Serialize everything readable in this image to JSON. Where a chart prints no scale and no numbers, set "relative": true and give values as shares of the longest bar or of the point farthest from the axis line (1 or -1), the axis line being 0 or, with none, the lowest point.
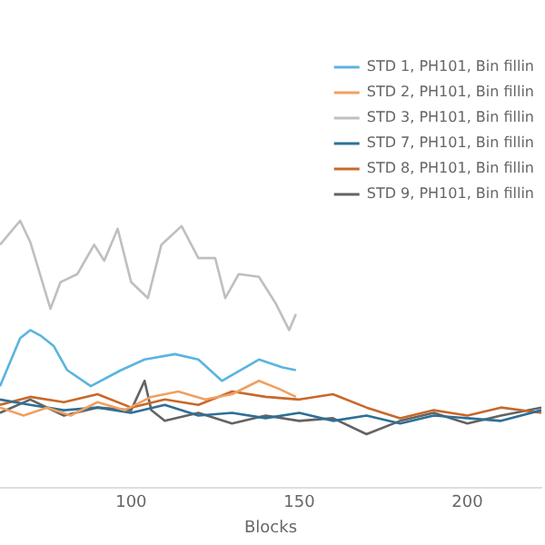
{
  "chart_data": {
    "type": "line",
    "xlabel": "Blocks",
    "relative": true,
    "xlim": [
      61,
      222
    ],
    "xticks": [
      100,
      150,
      200
    ],
    "legend": "top right",
    "grid": false,
    "marker": "none",
    "line_style": "solid",
    "series": [
      {
        "name": "STD 1, PH101, Bin fillin",
        "color": "#5ab4e0",
        "x": [
          61,
          67,
          70,
          73,
          77,
          81,
          88,
          97,
          104,
          113,
          120,
          127,
          138,
          145,
          149
        ],
        "values": [
          0.38,
          0.56,
          0.59,
          0.57,
          0.53,
          0.44,
          0.38,
          0.44,
          0.48,
          0.5,
          0.48,
          0.4,
          0.48,
          0.45,
          0.44
        ]
      },
      {
        "name": "STD 2, PH101, Bin fillin",
        "color": "#f0a060",
        "x": [
          61,
          68,
          75,
          82,
          90,
          98,
          106,
          114,
          122,
          130,
          138,
          144,
          149
        ],
        "values": [
          0.3,
          0.27,
          0.3,
          0.27,
          0.32,
          0.29,
          0.34,
          0.36,
          0.33,
          0.35,
          0.4,
          0.37,
          0.34
        ]
      },
      {
        "name": "STD 3, PH101, Bin fillin",
        "color": "#bfbfbf",
        "x": [
          61,
          67,
          70,
          76,
          79,
          84,
          89,
          92,
          96,
          100,
          105,
          109,
          115,
          120,
          125,
          128,
          132,
          138,
          143,
          147,
          149
        ],
        "values": [
          0.91,
          1,
          0.92,
          0.67,
          0.77,
          0.8,
          0.91,
          0.85,
          0.97,
          0.77,
          0.71,
          0.91,
          0.98,
          0.86,
          0.86,
          0.71,
          0.8,
          0.79,
          0.69,
          0.59,
          0.65
        ]
      },
      {
        "name": "STD 7, PH101, Bin fillin",
        "color": "#2e6f95",
        "x": [
          61,
          70,
          80,
          90,
          100,
          110,
          120,
          130,
          140,
          150,
          160,
          170,
          180,
          190,
          200,
          210,
          222
        ],
        "values": [
          0.33,
          0.31,
          0.29,
          0.3,
          0.28,
          0.31,
          0.27,
          0.28,
          0.26,
          0.28,
          0.25,
          0.27,
          0.24,
          0.27,
          0.26,
          0.25,
          0.29
        ]
      },
      {
        "name": "STD 8, PH101, Bin fillin",
        "color": "#c8682a",
        "x": [
          61,
          70,
          80,
          90,
          100,
          110,
          120,
          130,
          140,
          150,
          160,
          170,
          180,
          190,
          200,
          210,
          222
        ],
        "values": [
          0.31,
          0.34,
          0.32,
          0.35,
          0.3,
          0.33,
          0.31,
          0.36,
          0.34,
          0.33,
          0.35,
          0.3,
          0.26,
          0.29,
          0.27,
          0.3,
          0.28
        ]
      },
      {
        "name": "STD 9, PH101, Bin fillin",
        "color": "#636363",
        "x": [
          61,
          70,
          80,
          90,
          100,
          104,
          106,
          110,
          120,
          130,
          140,
          150,
          160,
          170,
          180,
          190,
          200,
          210,
          222
        ],
        "values": [
          0.28,
          0.33,
          0.27,
          0.3,
          0.29,
          0.4,
          0.29,
          0.25,
          0.28,
          0.24,
          0.27,
          0.25,
          0.26,
          0.2,
          0.25,
          0.28,
          0.24,
          0.27,
          0.3
        ]
      }
    ]
  }
}
